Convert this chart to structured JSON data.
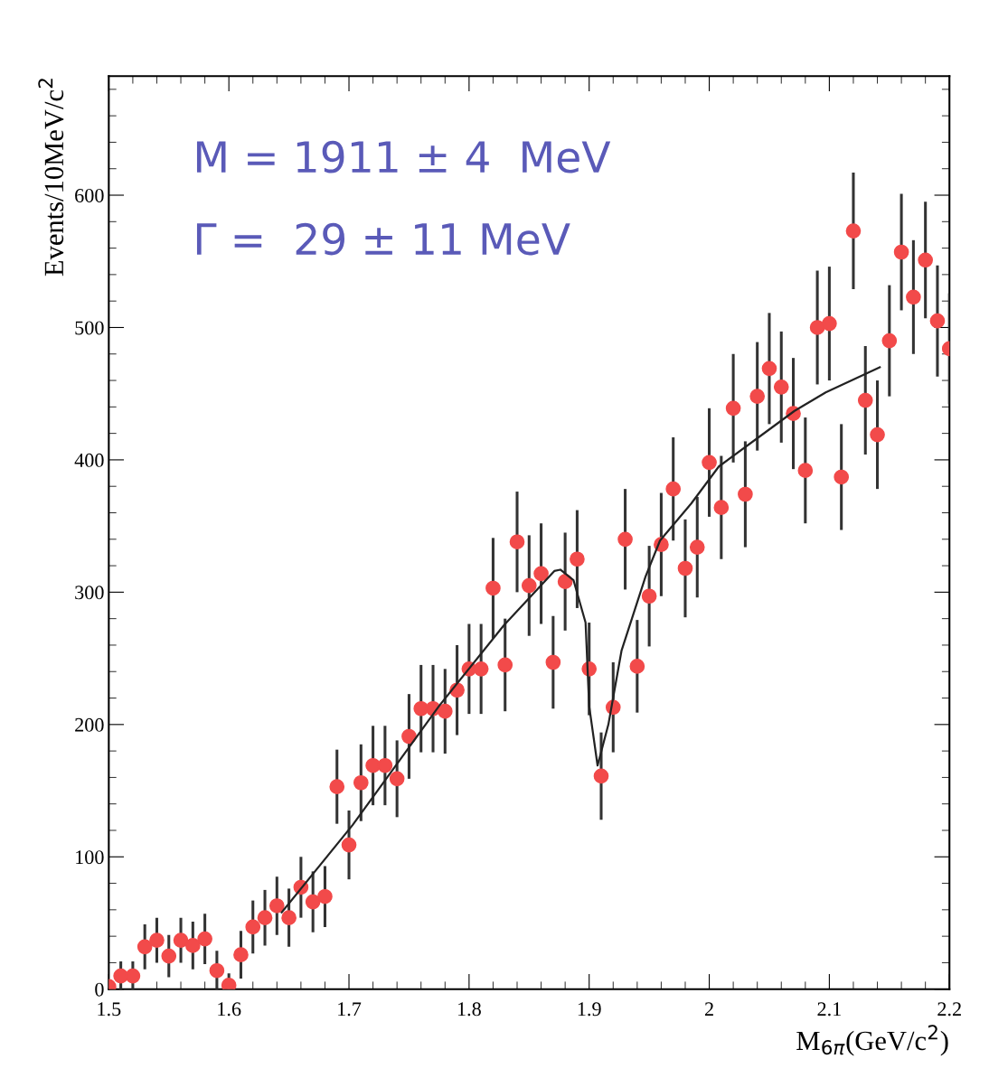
{
  "chart_data": {
    "type": "scatter",
    "xlabel": "M$_{6π}$(GeV/c$^{2}$)",
    "ylabel": "Events/10MeV/c$^{2}$",
    "annotations": [
      "M = 1911 ± 4  MeV",
      "Γ =  29 ± 11 MeV"
    ],
    "xlim": [
      1.5,
      2.2
    ],
    "xticks": [
      1.5,
      1.6,
      1.7,
      1.8,
      1.9,
      2,
      2.1,
      2.2
    ],
    "ylim": [
      0,
      690
    ],
    "yticks": [
      0,
      100,
      200,
      300,
      400,
      500,
      600
    ],
    "grid": false,
    "legend": false,
    "series": [
      {
        "color": "#f24a4a",
        "marker": "circle",
        "x": [
          1.5,
          1.51,
          1.52,
          1.53,
          1.54,
          1.55,
          1.56,
          1.57,
          1.58,
          1.59,
          1.6,
          1.61,
          1.62,
          1.63,
          1.64,
          1.65,
          1.66,
          1.67,
          1.68,
          1.69,
          1.7,
          1.71,
          1.72,
          1.73,
          1.74,
          1.75,
          1.76,
          1.77,
          1.78,
          1.79,
          1.8,
          1.81,
          1.82,
          1.83,
          1.84,
          1.85,
          1.86,
          1.87,
          1.88,
          1.89,
          1.9,
          1.91,
          1.92,
          1.93,
          1.94,
          1.95,
          1.96,
          1.97,
          1.98,
          1.99,
          2.0,
          2.01,
          2.02,
          2.03,
          2.04,
          2.05,
          2.06,
          2.07,
          2.08,
          2.09,
          2.1,
          2.11,
          2.12,
          2.13,
          2.14,
          2.15,
          2.16,
          2.17,
          2.18,
          2.19,
          2.2
        ],
        "values": [
          2,
          10,
          10,
          32,
          37,
          25,
          37,
          33,
          38,
          14,
          3,
          26,
          47,
          54,
          63,
          54,
          77,
          66,
          70,
          153,
          109,
          156,
          169,
          169,
          159,
          191,
          212,
          212,
          210,
          226,
          242,
          242,
          303,
          245,
          338,
          305,
          314,
          247,
          308,
          325,
          242,
          161,
          213,
          340,
          244,
          297,
          336,
          378,
          318,
          334,
          398,
          364,
          439,
          374,
          448,
          469,
          455,
          435,
          392,
          500,
          503,
          387,
          573,
          445,
          419,
          490,
          557,
          523,
          551,
          505,
          484
        ],
        "errors": [
          4,
          11,
          11,
          17,
          17,
          16,
          17,
          18,
          19,
          15,
          9,
          18,
          20,
          21,
          22,
          22,
          23,
          23,
          23,
          28,
          26,
          29,
          30,
          30,
          29,
          32,
          33,
          33,
          32,
          34,
          34,
          34,
          38,
          35,
          38,
          38,
          38,
          35,
          37,
          37,
          35,
          33,
          34,
          38,
          35,
          38,
          39,
          39,
          37,
          38,
          41,
          39,
          41,
          40,
          41,
          42,
          42,
          42,
          40,
          43,
          43,
          40,
          44,
          41,
          41,
          42,
          44,
          43,
          44,
          42,
          42
        ]
      },
      {
        "type": "line",
        "color": "#222222",
        "marker": "none",
        "line_style": "solid",
        "x": [
          1.644,
          1.703,
          1.775,
          1.829,
          1.871,
          1.876,
          1.887,
          1.897,
          1.9,
          1.907,
          1.916,
          1.927,
          1.947,
          1.959,
          1.985,
          2.008,
          2.05,
          2.071,
          2.097,
          2.142
        ],
        "values": [
          58,
          124,
          214,
          275,
          316,
          317,
          309,
          277,
          214,
          169,
          200,
          256,
          312,
          339,
          367,
          395,
          423,
          437,
          451,
          470
        ]
      }
    ]
  }
}
